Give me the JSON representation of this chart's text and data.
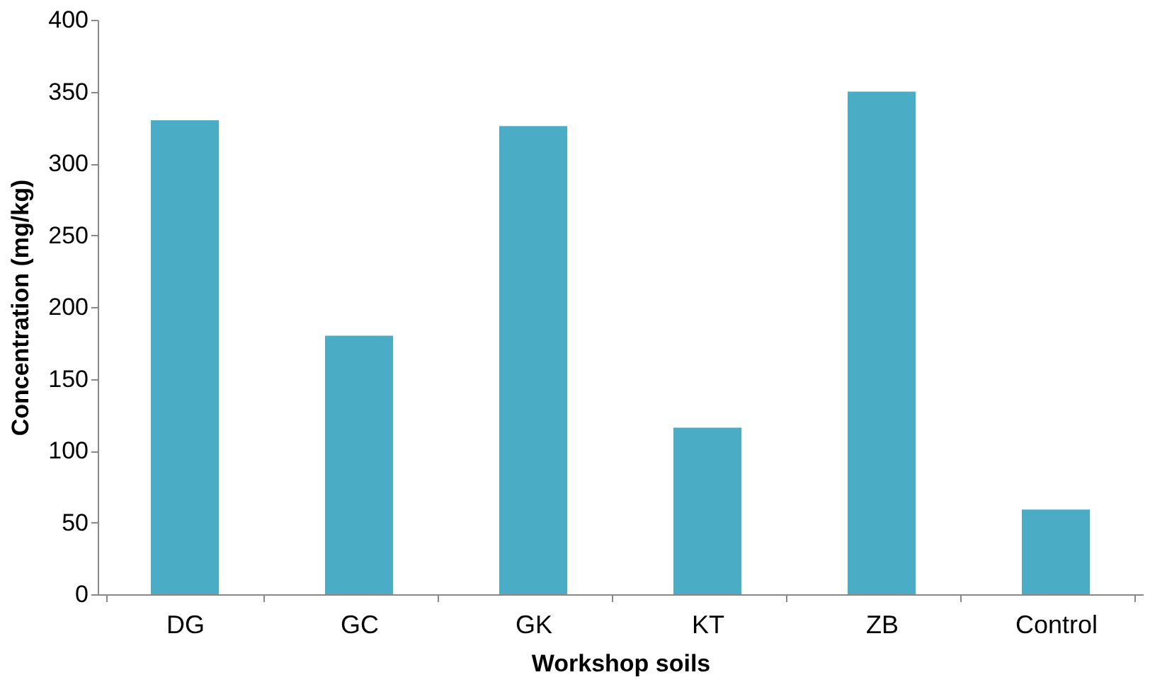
{
  "chart_data": {
    "type": "bar",
    "xlabel": "Workshop soils",
    "ylabel": "Concentration (mg/kg)",
    "categories": [
      "DG",
      "GC",
      "GK",
      "KT",
      "ZB",
      "Control"
    ],
    "values": [
      330,
      180,
      326,
      116,
      350,
      59
    ],
    "color": "#4bacc6",
    "ylim": [
      0,
      400
    ],
    "yticks": [
      0,
      50,
      100,
      150,
      200,
      250,
      300,
      350,
      400
    ],
    "grid": false
  }
}
